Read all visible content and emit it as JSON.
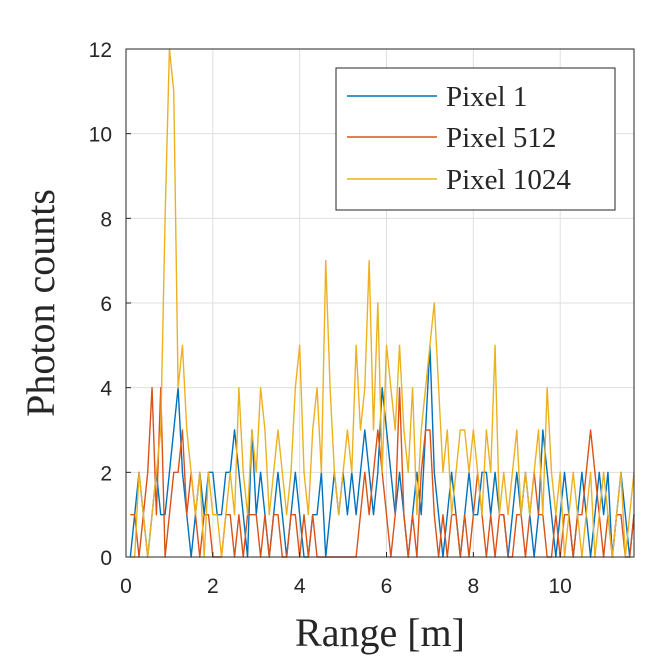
{
  "chart_data": {
    "type": "line",
    "title": "",
    "xlabel": "Range [m]",
    "ylabel": "Photon counts",
    "xlim": [
      0,
      11.7
    ],
    "ylim": [
      0,
      12
    ],
    "xticks": [
      0,
      2,
      4,
      6,
      8,
      10
    ],
    "yticks": [
      0,
      2,
      4,
      6,
      8,
      10,
      12
    ],
    "xtick_labels": [
      "0",
      "2",
      "4",
      "6",
      "8",
      "10"
    ],
    "ytick_labels": [
      "0",
      "2",
      "4",
      "6",
      "8",
      "10",
      "12"
    ],
    "grid": true,
    "legend_position": "top-right",
    "x": [
      0.1,
      0.2,
      0.3,
      0.4,
      0.5,
      0.6,
      0.7,
      0.8,
      0.9,
      1.0,
      1.1,
      1.2,
      1.3,
      1.4,
      1.5,
      1.6,
      1.7,
      1.8,
      1.9,
      2.0,
      2.1,
      2.2,
      2.3,
      2.4,
      2.5,
      2.6,
      2.7,
      2.8,
      2.9,
      3.0,
      3.1,
      3.2,
      3.3,
      3.4,
      3.5,
      3.6,
      3.7,
      3.8,
      3.9,
      4.0,
      4.1,
      4.2,
      4.3,
      4.4,
      4.5,
      4.6,
      4.7,
      4.8,
      4.9,
      5.0,
      5.1,
      5.2,
      5.3,
      5.4,
      5.5,
      5.6,
      5.7,
      5.8,
      5.9,
      6.0,
      6.1,
      6.2,
      6.3,
      6.4,
      6.5,
      6.6,
      6.7,
      6.8,
      6.9,
      7.0,
      7.1,
      7.2,
      7.3,
      7.4,
      7.5,
      7.6,
      7.7,
      7.8,
      7.9,
      8.0,
      8.1,
      8.2,
      8.3,
      8.4,
      8.5,
      8.6,
      8.7,
      8.8,
      8.9,
      9.0,
      9.1,
      9.2,
      9.3,
      9.4,
      9.5,
      9.6,
      9.7,
      9.8,
      9.9,
      10.0,
      10.1,
      10.2,
      10.3,
      10.4,
      10.5,
      10.6,
      10.7,
      10.8,
      10.9,
      11.0,
      11.1,
      11.2,
      11.3,
      11.4,
      11.5,
      11.6,
      11.7
    ],
    "series": [
      {
        "name": "Pixel 1",
        "color": "#0072BD",
        "values": [
          0,
          1,
          2,
          1,
          0,
          1,
          2,
          1,
          1,
          2,
          3,
          4,
          2,
          1,
          0,
          1,
          2,
          1,
          2,
          2,
          1,
          1,
          2,
          2,
          3,
          2,
          1,
          0,
          3,
          1,
          2,
          1,
          0,
          1,
          2,
          1,
          0,
          1,
          2,
          1,
          0,
          0,
          1,
          1,
          2,
          0,
          1,
          2,
          1,
          2,
          1,
          2,
          1,
          2,
          3,
          2,
          1,
          2,
          4,
          3,
          2,
          1,
          2,
          1,
          0,
          1,
          2,
          1,
          3,
          5,
          2,
          1,
          0,
          1,
          2,
          1,
          0,
          1,
          2,
          1,
          1,
          2,
          2,
          1,
          2,
          1,
          1,
          0,
          1,
          2,
          1,
          2,
          1,
          0,
          1,
          3,
          2,
          1,
          0,
          1,
          2,
          1,
          0,
          1,
          2,
          1,
          0,
          1,
          2,
          1,
          2,
          0,
          1,
          2,
          1,
          0,
          1
        ],
        "label": "Pixel 1"
      },
      {
        "name": "Pixel 512",
        "color": "#D95319",
        "values": [
          1,
          1,
          0,
          1,
          2,
          4,
          1,
          4,
          0,
          1,
          2,
          2,
          3,
          1,
          2,
          1,
          0,
          1,
          1,
          0,
          0,
          0,
          1,
          1,
          0,
          1,
          0,
          1,
          1,
          1,
          0,
          1,
          0,
          1,
          1,
          0,
          0,
          1,
          1,
          0,
          1,
          0,
          1,
          0,
          0,
          0,
          0,
          0,
          0,
          0,
          0,
          0,
          0,
          1,
          2,
          1,
          2,
          3,
          2,
          1,
          0,
          1,
          4,
          1,
          0,
          1,
          0,
          2,
          3,
          3,
          1,
          0,
          1,
          0,
          1,
          1,
          0,
          1,
          0,
          1,
          2,
          1,
          0,
          1,
          0,
          1,
          1,
          0,
          0,
          1,
          1,
          0,
          1,
          2,
          1,
          1,
          0,
          0,
          1,
          0,
          1,
          1,
          0,
          1,
          1,
          2,
          3,
          2,
          1,
          0,
          1,
          0,
          1,
          1,
          0,
          0,
          1
        ],
        "label": "Pixel 512"
      },
      {
        "name": "Pixel 1024",
        "color": "#EDB120",
        "values": [
          0,
          0,
          2,
          1,
          0,
          1,
          2,
          3,
          8,
          12,
          11,
          4,
          5,
          3,
          2,
          1,
          2,
          0,
          2,
          1,
          1,
          0,
          1,
          2,
          1,
          4,
          2,
          1,
          3,
          2,
          4,
          3,
          1,
          2,
          3,
          2,
          1,
          2,
          4,
          5,
          2,
          1,
          3,
          4,
          2,
          7,
          4,
          2,
          1,
          2,
          3,
          2,
          5,
          3,
          4,
          7,
          3,
          6,
          2,
          5,
          4,
          3,
          5,
          3,
          2,
          4,
          1,
          3,
          4,
          5,
          6,
          4,
          2,
          3,
          1,
          2,
          3,
          3,
          2,
          3,
          2,
          1,
          3,
          2,
          5,
          1,
          2,
          1,
          2,
          3,
          1,
          2,
          1,
          2,
          3,
          1,
          4,
          2,
          1,
          2,
          0,
          1,
          2,
          1,
          0,
          1,
          2,
          0,
          1,
          2,
          1,
          0,
          1,
          2,
          0,
          1,
          2
        ],
        "label": "Pixel 1024"
      }
    ]
  }
}
